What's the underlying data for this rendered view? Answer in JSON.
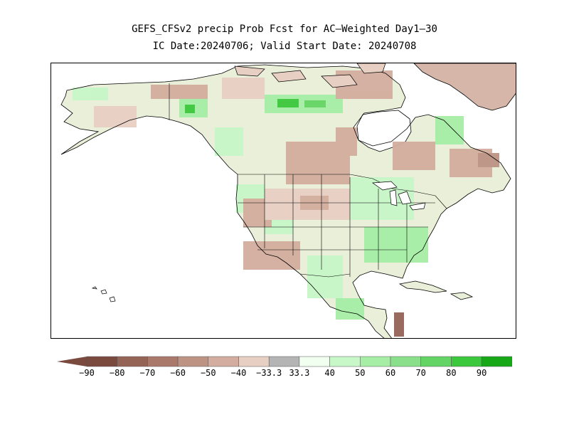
{
  "title": "GEFS_CFSv2 precip Prob Fcst for AC—Weighted Day1—30",
  "subtitle": "IC Date:20240706; Valid Start Date: 20240708",
  "colorbar": {
    "colors": [
      "#7a4a3e",
      "#946456",
      "#a97a6c",
      "#bd9384",
      "#d3ad9f",
      "#e8cfc4",
      "#b4b4b4",
      "#f0fff0",
      "#c8f7c8",
      "#a6eea6",
      "#8ae08a",
      "#64d464",
      "#3cc83c",
      "#17a817"
    ],
    "labels": [
      "−90",
      "−80",
      "−70",
      "−60",
      "−50",
      "−40",
      "−33.3",
      "33.3",
      "40",
      "50",
      "60",
      "70",
      "80",
      "90"
    ]
  }
}
